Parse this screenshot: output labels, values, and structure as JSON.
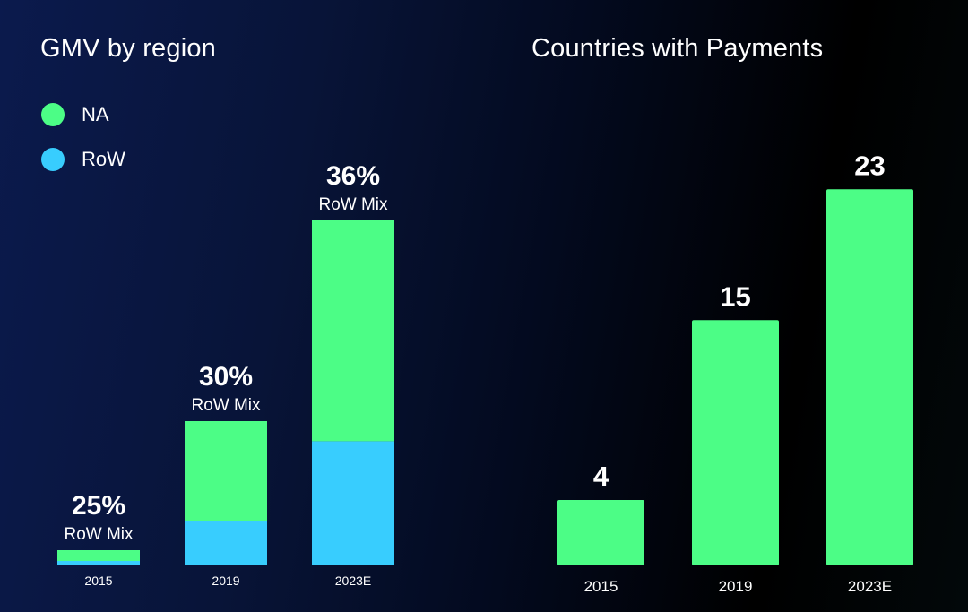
{
  "colors": {
    "na": "#4cfd86",
    "row": "#38cdfe"
  },
  "gmv": {
    "title": "GMV by region",
    "legend": [
      {
        "label": "NA",
        "color_key": "na"
      },
      {
        "label": "RoW",
        "color_key": "row"
      }
    ]
  },
  "countries": {
    "title": "Countries with Payments"
  },
  "chart_data": [
    {
      "type": "bar",
      "stacked": true,
      "title": "GMV by region",
      "categories": [
        "2015",
        "2019",
        "2023E"
      ],
      "series": [
        {
          "name": "NA",
          "values": [
            0.75,
            7.0,
            15.4
          ]
        },
        {
          "name": "RoW",
          "values": [
            0.25,
            3.0,
            8.6
          ]
        }
      ],
      "annotations": [
        {
          "category": "2015",
          "value": "25%",
          "sub": "RoW Mix"
        },
        {
          "category": "2019",
          "value": "30%",
          "sub": "RoW Mix"
        },
        {
          "category": "2023E",
          "value": "36%",
          "sub": "RoW Mix"
        }
      ],
      "legend": "top-left",
      "grid": false
    },
    {
      "type": "bar",
      "title": "Countries with Payments",
      "categories": [
        "2015",
        "2019",
        "2023E"
      ],
      "values": [
        4,
        15,
        23
      ],
      "data_labels": [
        "4",
        "15",
        "23"
      ],
      "grid": false
    }
  ]
}
